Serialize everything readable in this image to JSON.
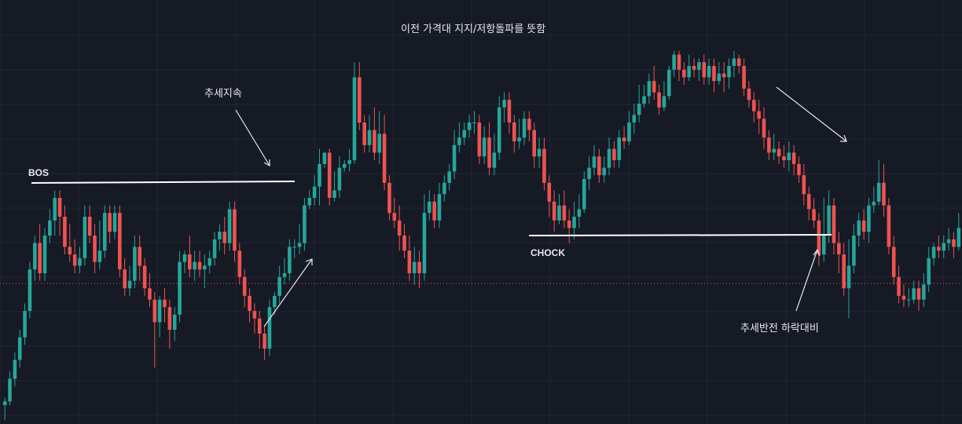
{
  "colors": {
    "background": "#161a25",
    "grid": "#232735",
    "up": "#26a69a",
    "down": "#ef5350",
    "level_line": "#ffffff",
    "price_line": "#ef5350",
    "text": "#e6e8ee"
  },
  "annotations": {
    "title": "이전 가격대 지지/저항돌파를 뜻함",
    "trend_continue": "추세지속",
    "bos": "BOS",
    "choch": "CHOCK",
    "trend_reversal": "추세반전 하락대비"
  },
  "chart_data": {
    "type": "candlestick",
    "title": "이전 가격대 지지/저항돌파를 뜻함",
    "xlabel": "",
    "ylabel": "",
    "grid": true,
    "ylim": [
      0,
      100
    ],
    "candles": [
      [
        5,
        6,
        7,
        1
      ],
      [
        6,
        12,
        14,
        5
      ],
      [
        12,
        17,
        19,
        10
      ],
      [
        17,
        23,
        25,
        15
      ],
      [
        23,
        30,
        32,
        21
      ],
      [
        30,
        41,
        43,
        28
      ],
      [
        41,
        48,
        50,
        38
      ],
      [
        48,
        40,
        53,
        38
      ],
      [
        40,
        50,
        52,
        38
      ],
      [
        50,
        54,
        57,
        48
      ],
      [
        54,
        60,
        62,
        50
      ],
      [
        60,
        55,
        62,
        50
      ],
      [
        55,
        47,
        58,
        45
      ],
      [
        47,
        45,
        53,
        43
      ],
      [
        45,
        42,
        49,
        40
      ],
      [
        42,
        44,
        47,
        40
      ],
      [
        44,
        55,
        58,
        42
      ],
      [
        55,
        50,
        58,
        48
      ],
      [
        50,
        43,
        53,
        40
      ],
      [
        43,
        46,
        54,
        41
      ],
      [
        46,
        56,
        58,
        44
      ],
      [
        56,
        51,
        58,
        48
      ],
      [
        51,
        56,
        58,
        49
      ],
      [
        56,
        41,
        58,
        39
      ],
      [
        41,
        36,
        44,
        34
      ],
      [
        36,
        38,
        42,
        34
      ],
      [
        38,
        47,
        50,
        36
      ],
      [
        47,
        42,
        50,
        38
      ],
      [
        42,
        36,
        44,
        34
      ],
      [
        36,
        33,
        40,
        31
      ],
      [
        33,
        27,
        35,
        15
      ],
      [
        27,
        33,
        34,
        23
      ],
      [
        33,
        31,
        36,
        27
      ],
      [
        31,
        25,
        33,
        20
      ],
      [
        25,
        29,
        31,
        22
      ],
      [
        29,
        43,
        46,
        27
      ],
      [
        43,
        45,
        46,
        40
      ],
      [
        45,
        41,
        50,
        39
      ],
      [
        41,
        43,
        46,
        38
      ],
      [
        43,
        41,
        46,
        39
      ],
      [
        41,
        42,
        45,
        36
      ],
      [
        42,
        44,
        46,
        40
      ],
      [
        44,
        49,
        51,
        42
      ],
      [
        49,
        51,
        53,
        46
      ],
      [
        51,
        48,
        55,
        45
      ],
      [
        48,
        57,
        59,
        46
      ],
      [
        57,
        46,
        59,
        43
      ],
      [
        46,
        39,
        48,
        37
      ],
      [
        39,
        34,
        41,
        31
      ],
      [
        34,
        30,
        36,
        27
      ],
      [
        30,
        28,
        32,
        24
      ],
      [
        28,
        24,
        30,
        20
      ],
      [
        24,
        20,
        26,
        17
      ],
      [
        20,
        31,
        33,
        18
      ],
      [
        31,
        34,
        35,
        29
      ],
      [
        34,
        39,
        42,
        32
      ],
      [
        39,
        40,
        44,
        37
      ],
      [
        40,
        47,
        49,
        38
      ],
      [
        47,
        47,
        49,
        44
      ],
      [
        47,
        48,
        53,
        45
      ],
      [
        48,
        58,
        60,
        46
      ],
      [
        58,
        60,
        62,
        57
      ],
      [
        60,
        63,
        66,
        58
      ],
      [
        63,
        69,
        73,
        58
      ],
      [
        69,
        72,
        72,
        68
      ],
      [
        72,
        60,
        73,
        58
      ],
      [
        60,
        62,
        67,
        59
      ],
      [
        62,
        68,
        71,
        60
      ],
      [
        68,
        69,
        70,
        67
      ],
      [
        69,
        70,
        73,
        67
      ],
      [
        70,
        92,
        96,
        69
      ],
      [
        92,
        80,
        96,
        78
      ],
      [
        80,
        74,
        82,
        72
      ],
      [
        74,
        78,
        82,
        72
      ],
      [
        78,
        72,
        84,
        70
      ],
      [
        72,
        77,
        83,
        69
      ],
      [
        77,
        64,
        82,
        62
      ],
      [
        64,
        56,
        66,
        54
      ],
      [
        56,
        54,
        60,
        52
      ],
      [
        54,
        50,
        58,
        46
      ],
      [
        50,
        46,
        53,
        44
      ],
      [
        46,
        40,
        50,
        38
      ],
      [
        40,
        43,
        47,
        37
      ],
      [
        43,
        40,
        46,
        36
      ],
      [
        40,
        56,
        61,
        38
      ],
      [
        56,
        59,
        62,
        54
      ],
      [
        59,
        54,
        61,
        52
      ],
      [
        54,
        61,
        64,
        52
      ],
      [
        61,
        64,
        66,
        59
      ],
      [
        64,
        67,
        69,
        62
      ],
      [
        67,
        74,
        78,
        65
      ],
      [
        74,
        76,
        80,
        72
      ],
      [
        76,
        78,
        80,
        74
      ],
      [
        78,
        80,
        82,
        76
      ],
      [
        80,
        80,
        83,
        77
      ],
      [
        80,
        71,
        82,
        69
      ],
      [
        71,
        76,
        79,
        69
      ],
      [
        76,
        68,
        80,
        66
      ],
      [
        68,
        72,
        77,
        66
      ],
      [
        72,
        84,
        87,
        70
      ],
      [
        84,
        86,
        88,
        80
      ],
      [
        86,
        80,
        88,
        77
      ],
      [
        80,
        75,
        82,
        72
      ],
      [
        75,
        76,
        81,
        73
      ],
      [
        76,
        81,
        83,
        74
      ],
      [
        81,
        78,
        83,
        75
      ],
      [
        78,
        71,
        80,
        68
      ],
      [
        71,
        73,
        76,
        68
      ],
      [
        73,
        64,
        76,
        62
      ],
      [
        64,
        59,
        66,
        55
      ],
      [
        59,
        54,
        62,
        51
      ],
      [
        54,
        58,
        61,
        53
      ],
      [
        58,
        54,
        62,
        52
      ],
      [
        54,
        52,
        57,
        48
      ],
      [
        52,
        55,
        59,
        49
      ],
      [
        55,
        57,
        61,
        52
      ],
      [
        57,
        65,
        67,
        56
      ],
      [
        65,
        68,
        71,
        62
      ],
      [
        68,
        71,
        74,
        66
      ],
      [
        71,
        66,
        73,
        64
      ],
      [
        66,
        68,
        71,
        64
      ],
      [
        68,
        73,
        76,
        66
      ],
      [
        73,
        70,
        75,
        68
      ],
      [
        70,
        76,
        78,
        68
      ],
      [
        76,
        75,
        79,
        73
      ],
      [
        75,
        80,
        83,
        74
      ],
      [
        80,
        82,
        85,
        77
      ],
      [
        82,
        85,
        90,
        80
      ],
      [
        85,
        87,
        90,
        84
      ],
      [
        87,
        91,
        93,
        85
      ],
      [
        91,
        88,
        95,
        86
      ],
      [
        88,
        84,
        90,
        82
      ],
      [
        84,
        87,
        91,
        83
      ],
      [
        87,
        94,
        95,
        86
      ],
      [
        94,
        98,
        99,
        92
      ],
      [
        98,
        94,
        99,
        91
      ],
      [
        94,
        92,
        96,
        90
      ],
      [
        92,
        95,
        98,
        91
      ],
      [
        95,
        94,
        97,
        92
      ],
      [
        94,
        96,
        97,
        91
      ],
      [
        96,
        92,
        98,
        90
      ],
      [
        92,
        95,
        97,
        90
      ],
      [
        95,
        91,
        97,
        88
      ],
      [
        91,
        93,
        96,
        90
      ],
      [
        93,
        92,
        96,
        88
      ],
      [
        92,
        95,
        97,
        89
      ],
      [
        95,
        97,
        99,
        92
      ],
      [
        97,
        95,
        98,
        93
      ],
      [
        95,
        89,
        97,
        87
      ],
      [
        89,
        86,
        91,
        84
      ],
      [
        86,
        83,
        88,
        80
      ],
      [
        83,
        81,
        86,
        77
      ],
      [
        81,
        76,
        84,
        73
      ],
      [
        76,
        72,
        78,
        70
      ],
      [
        72,
        73,
        77,
        70
      ],
      [
        73,
        71,
        75,
        69
      ],
      [
        71,
        70,
        74,
        68
      ],
      [
        70,
        72,
        75,
        67
      ],
      [
        72,
        69,
        74,
        66
      ],
      [
        69,
        66,
        71,
        64
      ],
      [
        66,
        61,
        69,
        58
      ],
      [
        61,
        57,
        63,
        54
      ],
      [
        57,
        54,
        60,
        52
      ],
      [
        54,
        45,
        56,
        42
      ],
      [
        45,
        50,
        60,
        43
      ],
      [
        50,
        58,
        62,
        48
      ],
      [
        58,
        48,
        60,
        45
      ],
      [
        48,
        45,
        51,
        40
      ],
      [
        45,
        36,
        48,
        34
      ],
      [
        36,
        42,
        49,
        28
      ],
      [
        42,
        50,
        53,
        40
      ],
      [
        50,
        54,
        56,
        47
      ],
      [
        54,
        51,
        57,
        49
      ],
      [
        51,
        58,
        60,
        48
      ],
      [
        58,
        59,
        63,
        56
      ],
      [
        59,
        64,
        70,
        58
      ],
      [
        64,
        58,
        69,
        55
      ],
      [
        58,
        47,
        60,
        45
      ],
      [
        47,
        39,
        50,
        37
      ],
      [
        39,
        34,
        42,
        32
      ],
      [
        34,
        33,
        37,
        31
      ],
      [
        33,
        33,
        36,
        31
      ],
      [
        33,
        36,
        38,
        32
      ],
      [
        36,
        33,
        38,
        30
      ],
      [
        33,
        37,
        40,
        31
      ],
      [
        37,
        44,
        47,
        35
      ],
      [
        44,
        47,
        48,
        42
      ],
      [
        47,
        46,
        50,
        44
      ],
      [
        46,
        48,
        50,
        44
      ],
      [
        48,
        49,
        52,
        46
      ],
      [
        49,
        47,
        51,
        44
      ],
      [
        47,
        52,
        56,
        46
      ]
    ]
  }
}
